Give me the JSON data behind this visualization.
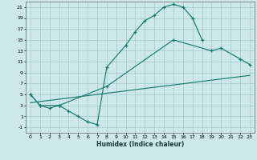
{
  "xlabel": "Humidex (Indice chaleur)",
  "bg_color": "#cce8e8",
  "grid_color": "#aacfcf",
  "line_color": "#1a7a6e",
  "xlim": [
    -0.5,
    23.5
  ],
  "ylim": [
    -2,
    22
  ],
  "xticks": [
    0,
    1,
    2,
    3,
    4,
    5,
    6,
    7,
    8,
    9,
    10,
    11,
    12,
    13,
    14,
    15,
    16,
    17,
    18,
    19,
    20,
    21,
    22,
    23
  ],
  "yticks": [
    -1,
    1,
    3,
    5,
    7,
    9,
    11,
    13,
    15,
    17,
    19,
    21
  ],
  "s1x": [
    0,
    1,
    2,
    3,
    4,
    5,
    6,
    7,
    8,
    10,
    11,
    12,
    13,
    14,
    15,
    16,
    17,
    18
  ],
  "s1y": [
    5,
    3,
    2.5,
    3,
    2,
    1,
    0,
    -0.5,
    10,
    14,
    16.5,
    18.5,
    19.5,
    21,
    21.5,
    21,
    19,
    15
  ],
  "s2x": [
    0,
    1,
    3,
    8,
    15,
    19,
    20,
    22,
    23
  ],
  "s2y": [
    5,
    3,
    3,
    6.5,
    15,
    13,
    13.5,
    11.5,
    10.5
  ],
  "s3x": [
    0,
    23
  ],
  "s3y": [
    3.5,
    8.5
  ]
}
